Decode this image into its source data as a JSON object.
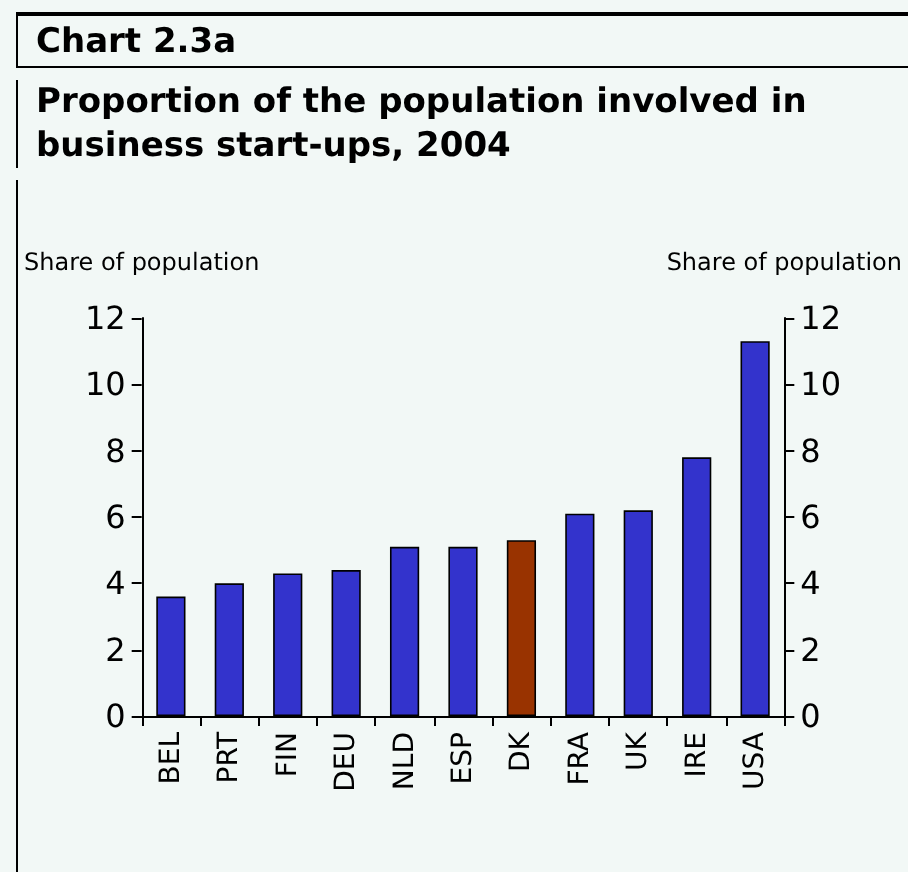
{
  "chart_data": {
    "type": "bar",
    "title": "Chart 2.3a",
    "subtitle": "Proportion of the population involved in business start-ups, 2004",
    "categories": [
      "BEL",
      "PRT",
      "FIN",
      "DEU",
      "NLD",
      "ESP",
      "DK",
      "FRA",
      "UK",
      "IRE",
      "USA"
    ],
    "values": [
      3.6,
      4.0,
      4.3,
      4.4,
      5.1,
      5.1,
      5.3,
      6.1,
      6.2,
      7.8,
      11.3
    ],
    "colors": [
      "#3333cc",
      "#3333cc",
      "#3333cc",
      "#3333cc",
      "#3333cc",
      "#3333cc",
      "#993300",
      "#3333cc",
      "#3333cc",
      "#3333cc",
      "#3333cc"
    ],
    "ylabel": "Share of population",
    "y2label": "Share of population",
    "ylim": [
      0,
      12
    ],
    "yticks": [
      0,
      2,
      4,
      6,
      8,
      10,
      12
    ],
    "y2lim": [
      0,
      12
    ],
    "y2ticks": [
      0,
      2,
      4,
      6,
      8,
      10,
      12
    ],
    "grid": false
  }
}
